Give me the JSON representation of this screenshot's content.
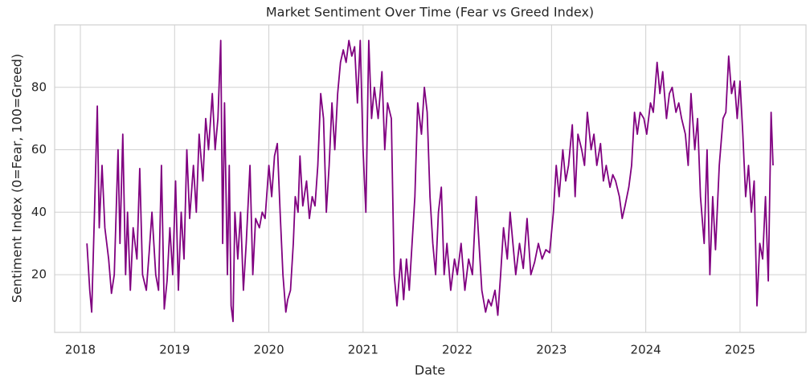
{
  "chart_data": {
    "type": "line",
    "title": "Market Sentiment Over Time (Fear vs Greed Index)",
    "xlabel": "Date",
    "ylabel": "Sentiment Index (0=Fear, 100=Greed)",
    "x": [
      2018.07,
      2018.1,
      2018.12,
      2018.15,
      2018.18,
      2018.2,
      2018.23,
      2018.26,
      2018.3,
      2018.33,
      2018.36,
      2018.4,
      2018.42,
      2018.45,
      2018.48,
      2018.5,
      2018.53,
      2018.56,
      2018.6,
      2018.63,
      2018.66,
      2018.7,
      2018.73,
      2018.76,
      2018.8,
      2018.83,
      2018.86,
      2018.89,
      2018.92,
      2018.95,
      2018.98,
      2019.01,
      2019.04,
      2019.07,
      2019.1,
      2019.13,
      2019.16,
      2019.2,
      2019.23,
      2019.26,
      2019.3,
      2019.33,
      2019.36,
      2019.4,
      2019.43,
      2019.46,
      2019.49,
      2019.51,
      2019.53,
      2019.56,
      2019.58,
      2019.6,
      2019.62,
      2019.64,
      2019.67,
      2019.7,
      2019.73,
      2019.76,
      2019.8,
      2019.83,
      2019.86,
      2019.9,
      2019.93,
      2019.96,
      2020.0,
      2020.03,
      2020.06,
      2020.09,
      2020.12,
      2020.15,
      2020.18,
      2020.2,
      2020.23,
      2020.26,
      2020.28,
      2020.31,
      2020.33,
      2020.36,
      2020.4,
      2020.43,
      2020.46,
      2020.49,
      2020.52,
      2020.55,
      2020.58,
      2020.61,
      2020.64,
      2020.67,
      2020.7,
      2020.73,
      2020.76,
      2020.79,
      2020.82,
      2020.85,
      2020.88,
      2020.91,
      2020.94,
      2020.97,
      2021.0,
      2021.03,
      2021.06,
      2021.09,
      2021.12,
      2021.16,
      2021.2,
      2021.23,
      2021.26,
      2021.3,
      2021.33,
      2021.36,
      2021.4,
      2021.43,
      2021.46,
      2021.49,
      2021.52,
      2021.55,
      2021.58,
      2021.62,
      2021.65,
      2021.68,
      2021.71,
      2021.74,
      2021.77,
      2021.8,
      2021.83,
      2021.86,
      2021.89,
      2021.93,
      2021.97,
      2022.0,
      2022.04,
      2022.08,
      2022.12,
      2022.16,
      2022.2,
      2022.23,
      2022.26,
      2022.3,
      2022.33,
      2022.36,
      2022.4,
      2022.43,
      2022.46,
      2022.49,
      2022.53,
      2022.56,
      2022.59,
      2022.62,
      2022.66,
      2022.7,
      2022.74,
      2022.78,
      2022.82,
      2022.86,
      2022.9,
      2022.94,
      2022.98,
      2023.02,
      2023.05,
      2023.08,
      2023.12,
      2023.15,
      2023.18,
      2023.22,
      2023.25,
      2023.28,
      2023.32,
      2023.35,
      2023.38,
      2023.42,
      2023.45,
      2023.48,
      2023.52,
      2023.55,
      2023.58,
      2023.62,
      2023.65,
      2023.68,
      2023.72,
      2023.75,
      2023.78,
      2023.82,
      2023.85,
      2023.88,
      2023.91,
      2023.94,
      2023.98,
      2024.01,
      2024.05,
      2024.08,
      2024.12,
      2024.15,
      2024.18,
      2024.22,
      2024.25,
      2024.28,
      2024.32,
      2024.35,
      2024.38,
      2024.42,
      2024.45,
      2024.48,
      2024.52,
      2024.55,
      2024.58,
      2024.62,
      2024.65,
      2024.68,
      2024.71,
      2024.74,
      2024.78,
      2024.82,
      2024.85,
      2024.88,
      2024.91,
      2024.94,
      2024.97,
      2025.0,
      2025.03,
      2025.06,
      2025.09,
      2025.12,
      2025.15,
      2025.18,
      2025.21,
      2025.24,
      2025.27,
      2025.3,
      2025.33,
      2025.35
    ],
    "values": [
      30,
      15,
      8,
      40,
      74,
      35,
      55,
      35,
      25,
      14,
      20,
      60,
      30,
      65,
      20,
      40,
      15,
      35,
      25,
      54,
      20,
      15,
      27,
      40,
      20,
      15,
      55,
      9,
      18,
      35,
      20,
      50,
      15,
      40,
      25,
      60,
      38,
      55,
      40,
      65,
      50,
      70,
      60,
      78,
      60,
      70,
      95,
      30,
      75,
      20,
      55,
      10,
      5,
      40,
      25,
      40,
      15,
      30,
      55,
      20,
      38,
      35,
      40,
      38,
      55,
      45,
      58,
      62,
      40,
      20,
      8,
      12,
      15,
      30,
      45,
      40,
      58,
      42,
      50,
      38,
      45,
      42,
      55,
      78,
      70,
      40,
      55,
      75,
      60,
      78,
      88,
      92,
      88,
      95,
      90,
      93,
      75,
      95,
      60,
      40,
      95,
      70,
      80,
      70,
      85,
      60,
      75,
      70,
      20,
      10,
      25,
      12,
      25,
      15,
      30,
      45,
      75,
      65,
      80,
      72,
      45,
      30,
      20,
      40,
      48,
      20,
      30,
      15,
      25,
      20,
      30,
      15,
      25,
      20,
      45,
      30,
      15,
      8,
      12,
      10,
      15,
      7,
      20,
      35,
      25,
      40,
      30,
      20,
      30,
      22,
      38,
      20,
      24,
      30,
      25,
      28,
      27,
      40,
      55,
      45,
      60,
      50,
      55,
      68,
      45,
      65,
      60,
      55,
      72,
      60,
      65,
      55,
      62,
      50,
      55,
      48,
      52,
      50,
      45,
      38,
      42,
      48,
      55,
      72,
      65,
      72,
      70,
      65,
      75,
      72,
      88,
      78,
      85,
      70,
      78,
      80,
      72,
      75,
      70,
      65,
      55,
      78,
      60,
      70,
      45,
      30,
      60,
      20,
      45,
      28,
      55,
      70,
      72,
      90,
      78,
      82,
      70,
      82,
      65,
      45,
      55,
      40,
      50,
      10,
      30,
      25,
      45,
      18,
      72,
      55
    ],
    "color": "#800080",
    "xlim": [
      2017.727,
      2025.7
    ],
    "xticks": [
      2018,
      2019,
      2020,
      2021,
      2022,
      2023,
      2024,
      2025
    ],
    "ylim": [
      1.5,
      100
    ],
    "yticks": [
      20,
      40,
      60,
      80
    ],
    "grid": true
  }
}
